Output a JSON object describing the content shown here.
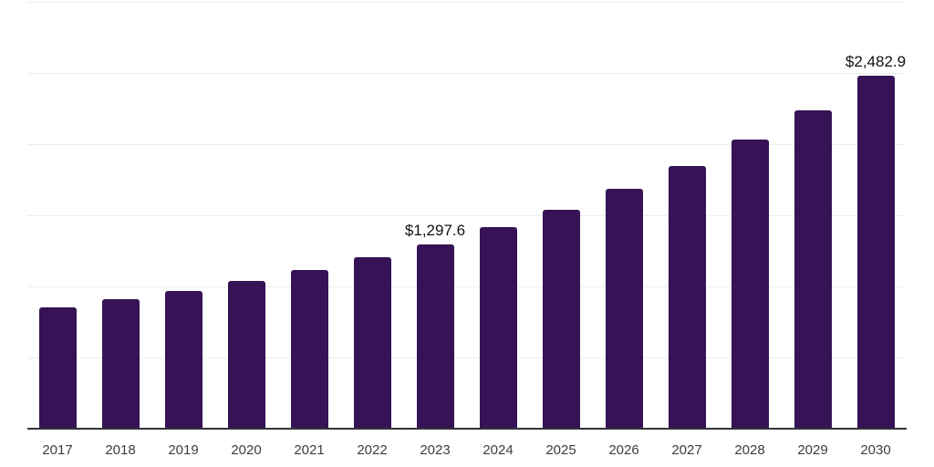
{
  "chart_data": {
    "type": "bar",
    "title": "",
    "xlabel": "",
    "ylabel": "",
    "categories": [
      "2017",
      "2018",
      "2019",
      "2020",
      "2021",
      "2022",
      "2023",
      "2024",
      "2025",
      "2026",
      "2027",
      "2028",
      "2029",
      "2030"
    ],
    "values": [
      854.2,
      908.3,
      967.9,
      1038.4,
      1115.4,
      1205.1,
      1297.6,
      1414.7,
      1536.5,
      1683.9,
      1844.2,
      2033.9,
      2237.1,
      2482.9
    ],
    "data_labels": [
      "",
      "",
      "",
      "",
      "",
      "",
      "$1,297.6",
      "",
      "",
      "",
      "",
      "",
      "",
      "$2,482.9"
    ],
    "value_prefix": "$",
    "ylim": [
      0,
      3000
    ],
    "gridline_interval": 500,
    "grid": "horizontal-only",
    "legend": "none",
    "y_tick_labels_visible": false
  },
  "colors": {
    "bar_fill": "#351356",
    "axis_line": "#33333a",
    "gridline": "#ededed",
    "x_tick_label": "#3d3d3d",
    "data_label": "#111111",
    "background": "#ffffff"
  }
}
